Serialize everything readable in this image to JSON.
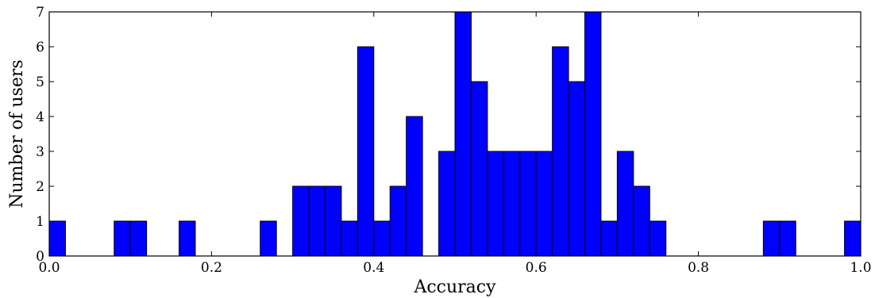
{
  "chart_data": {
    "type": "bar",
    "title": "",
    "xlabel": "Accuracy",
    "ylabel": "Number of users",
    "xlim": [
      0.0,
      1.0
    ],
    "ylim": [
      0,
      7
    ],
    "bin_width": 0.02,
    "grid": false,
    "bar_color": "#0000ff",
    "edge_color": "#000000",
    "x_ticks": [
      "0.0",
      "0.2",
      "0.4",
      "0.6",
      "0.8",
      "1.0"
    ],
    "y_ticks": [
      "0",
      "1",
      "2",
      "3",
      "4",
      "5",
      "6",
      "7"
    ],
    "bins": [
      {
        "x": 0.0,
        "count": 1
      },
      {
        "x": 0.08,
        "count": 1
      },
      {
        "x": 0.1,
        "count": 1
      },
      {
        "x": 0.16,
        "count": 1
      },
      {
        "x": 0.26,
        "count": 1
      },
      {
        "x": 0.3,
        "count": 2
      },
      {
        "x": 0.32,
        "count": 2
      },
      {
        "x": 0.34,
        "count": 2
      },
      {
        "x": 0.36,
        "count": 1
      },
      {
        "x": 0.38,
        "count": 6
      },
      {
        "x": 0.4,
        "count": 1
      },
      {
        "x": 0.42,
        "count": 2
      },
      {
        "x": 0.44,
        "count": 4
      },
      {
        "x": 0.48,
        "count": 3
      },
      {
        "x": 0.5,
        "count": 7
      },
      {
        "x": 0.52,
        "count": 5
      },
      {
        "x": 0.54,
        "count": 3
      },
      {
        "x": 0.56,
        "count": 3
      },
      {
        "x": 0.58,
        "count": 3
      },
      {
        "x": 0.6,
        "count": 3
      },
      {
        "x": 0.62,
        "count": 6
      },
      {
        "x": 0.64,
        "count": 5
      },
      {
        "x": 0.66,
        "count": 7
      },
      {
        "x": 0.68,
        "count": 1
      },
      {
        "x": 0.7,
        "count": 3
      },
      {
        "x": 0.72,
        "count": 2
      },
      {
        "x": 0.74,
        "count": 1
      },
      {
        "x": 0.88,
        "count": 1
      },
      {
        "x": 0.9,
        "count": 1
      },
      {
        "x": 0.98,
        "count": 1
      }
    ]
  }
}
